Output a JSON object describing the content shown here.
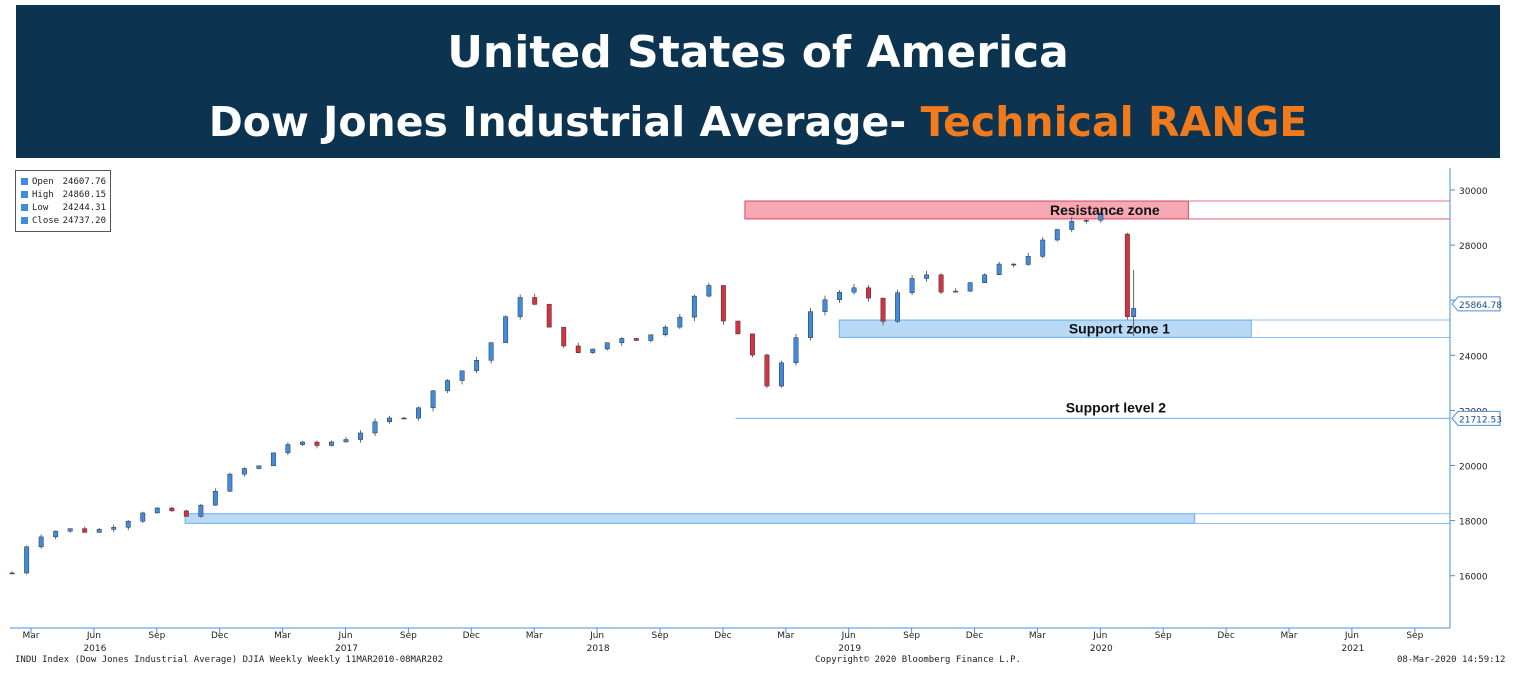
{
  "banner": {
    "title": "United States of America",
    "subtitle_main": "Dow Jones Industrial Average- ",
    "subtitle_highlight": "Technical RANGE"
  },
  "legend": {
    "rows": [
      {
        "label": "Open",
        "value": "24607.76"
      },
      {
        "label": "High",
        "value": "24860.15"
      },
      {
        "label": "Low",
        "value": "24244.31"
      },
      {
        "label": "Close",
        "value": "24737.20"
      }
    ]
  },
  "footer": {
    "left": "INDU Index (Dow Jones Industrial Average) DJIA Weekly  Weekly 11MAR2010-08MAR202",
    "center": "Copyright© 2020 Bloomberg Finance L.P.",
    "right": "08-Mar-2020 14:59:12"
  },
  "colors": {
    "banner_bg": "#0c3350",
    "highlight": "#f07a1c",
    "up_candle": "#3f8be0",
    "down_candle": "#d2333e",
    "resistance_fill": "#f6a8b4",
    "support_fill": "#b9d9f7"
  },
  "chart_data": {
    "type": "candlestick",
    "y_axis": {
      "ticks": [
        16000,
        18000,
        20000,
        22000,
        24000,
        26000,
        28000,
        30000
      ],
      "ylim": [
        14200,
        30600
      ],
      "side": "right"
    },
    "x_axis": {
      "month_ticks": [
        "Mar",
        "Jun",
        "Sep",
        "Dec",
        "Mar",
        "Jun",
        "Sep",
        "Dec",
        "Mar",
        "Jun",
        "Sep",
        "Dec",
        "Mar",
        "Jun",
        "Sep",
        "Dec",
        "Mar",
        "Jun",
        "Sep",
        "Dec",
        "Mar",
        "Jun",
        "Sep"
      ],
      "year_labels": [
        {
          "label": "2016",
          "month_index": 1
        },
        {
          "label": "2017",
          "month_index": 5
        },
        {
          "label": "2018",
          "month_index": 9
        },
        {
          "label": "2019",
          "month_index": 13
        },
        {
          "label": "2020",
          "month_index": 17
        },
        {
          "label": "2021",
          "month_index": 21
        }
      ]
    },
    "price_tags": [
      {
        "value": 25864.78,
        "label": "25864.78"
      },
      {
        "value": 21712.53,
        "label": "21712.53"
      }
    ],
    "zones": [
      {
        "label": "Resistance zone",
        "kind": "resistance",
        "low": 28950,
        "high": 29600,
        "start_month_index": 11.35,
        "end_month_index": 18.4
      },
      {
        "label": "Support zone 1",
        "kind": "support",
        "low": 24650,
        "high": 25280,
        "start_month_index": 12.85,
        "end_month_index": 19.4
      },
      {
        "label": "Support level 2",
        "kind": "support_line",
        "low": 21712.53,
        "high": 21712.53,
        "start_month_index": 11.2,
        "end_month_index": 23
      },
      {
        "label": "",
        "kind": "support",
        "low": 17900,
        "high": 18250,
        "start_month_index": 2.45,
        "end_month_index": 18.5
      }
    ],
    "anchors": [
      {
        "month_index": -0.3,
        "close": 16100
      },
      {
        "month_index": 0,
        "close": 17400
      },
      {
        "month_index": 0.5,
        "close": 17700
      },
      {
        "month_index": 1,
        "close": 17600
      },
      {
        "month_index": 1.5,
        "close": 18000
      },
      {
        "month_index": 1.9,
        "close": 18500
      },
      {
        "month_index": 2.3,
        "close": 18200
      },
      {
        "month_index": 2.6,
        "close": 18100
      },
      {
        "month_index": 2.8,
        "close": 18900
      },
      {
        "month_index": 3,
        "close": 19300
      },
      {
        "month_index": 3.3,
        "close": 19850
      },
      {
        "month_index": 3.6,
        "close": 19900
      },
      {
        "month_index": 4,
        "close": 20800
      },
      {
        "month_index": 4.5,
        "close": 20700
      },
      {
        "month_index": 5,
        "close": 21000
      },
      {
        "month_index": 5.5,
        "close": 21500
      },
      {
        "month_index": 6,
        "close": 21900
      },
      {
        "month_index": 6.3,
        "close": 22400
      },
      {
        "month_index": 6.6,
        "close": 23200
      },
      {
        "month_index": 7,
        "close": 23600
      },
      {
        "month_index": 7.4,
        "close": 24700
      },
      {
        "month_index": 7.8,
        "close": 26300
      },
      {
        "month_index": 7.9,
        "close": 26500
      },
      {
        "month_index": 8.1,
        "close": 25200
      },
      {
        "month_index": 8.4,
        "close": 24600
      },
      {
        "month_index": 8.7,
        "close": 24000
      },
      {
        "month_index": 9,
        "close": 24300
      },
      {
        "month_index": 9.4,
        "close": 24700
      },
      {
        "month_index": 9.8,
        "close": 24600
      },
      {
        "month_index": 10,
        "close": 25000
      },
      {
        "month_index": 10.3,
        "close": 25500
      },
      {
        "month_index": 10.6,
        "close": 26200
      },
      {
        "month_index": 10.8,
        "close": 26500
      },
      {
        "month_index": 11,
        "close": 25300
      },
      {
        "month_index": 11.3,
        "close": 24800
      },
      {
        "month_index": 11.6,
        "close": 23500
      },
      {
        "month_index": 11.75,
        "close": 22600
      },
      {
        "month_index": 12,
        "close": 24000
      },
      {
        "month_index": 12.3,
        "close": 25400
      },
      {
        "month_index": 12.6,
        "close": 26000
      },
      {
        "month_index": 13,
        "close": 26500
      },
      {
        "month_index": 13.3,
        "close": 26000
      },
      {
        "month_index": 13.5,
        "close": 25000
      },
      {
        "month_index": 13.7,
        "close": 26100
      },
      {
        "month_index": 14,
        "close": 26700
      },
      {
        "month_index": 14.3,
        "close": 27000
      },
      {
        "month_index": 14.6,
        "close": 26000
      },
      {
        "month_index": 15,
        "close": 26700
      },
      {
        "month_index": 15.3,
        "close": 27100
      },
      {
        "month_index": 15.6,
        "close": 27300
      },
      {
        "month_index": 16,
        "close": 27900
      },
      {
        "month_index": 16.4,
        "close": 28600
      },
      {
        "month_index": 16.7,
        "close": 29200
      },
      {
        "month_index": 16.9,
        "close": 28800
      },
      {
        "month_index": 17,
        "close": 29300
      },
      {
        "month_index": 17.1,
        "close": 28500
      },
      {
        "month_index": 17.2,
        "close": 29150
      },
      {
        "month_index": 17.3,
        "close": 29350
      }
    ],
    "selloff_candles": [
      {
        "month_index": 17.43,
        "open": 28400,
        "high": 28450,
        "low": 25300,
        "close": 25400
      },
      {
        "month_index": 17.53,
        "open": 25400,
        "high": 27100,
        "low": 24700,
        "close": 25700
      }
    ]
  }
}
